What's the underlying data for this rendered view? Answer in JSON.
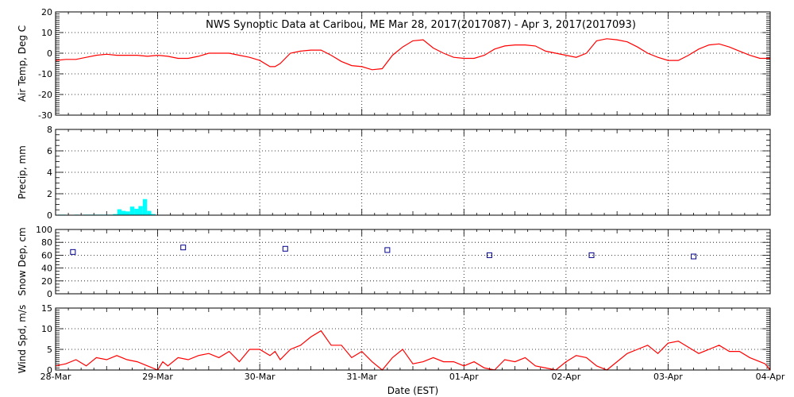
{
  "chart_data": {
    "title": "NWS Synoptic Data at Caribou, ME   Mar 28, 2017(2017087) - Apr  3, 2017(2017093)",
    "xlabel": "Date (EST)",
    "x_ticks": [
      "28-Mar",
      "29-Mar",
      "30-Mar",
      "31-Mar",
      "01-Apr",
      "02-Apr",
      "03-Apr",
      "04-Apr"
    ],
    "xlim_days": [
      0,
      7
    ],
    "grid": true,
    "panels": [
      {
        "type": "line",
        "ylabel": "Air Temp, Deg C",
        "ylim": [
          -30,
          20
        ],
        "yticks": [
          -30,
          -20,
          -10,
          0,
          10,
          20
        ],
        "color": "#ff0000",
        "x_days": [
          0,
          0.1,
          0.2,
          0.3,
          0.4,
          0.5,
          0.6,
          0.7,
          0.8,
          0.9,
          1.0,
          1.1,
          1.2,
          1.3,
          1.4,
          1.5,
          1.6,
          1.7,
          1.8,
          1.9,
          2.0,
          2.1,
          2.15,
          2.2,
          2.3,
          2.4,
          2.5,
          2.6,
          2.7,
          2.8,
          2.9,
          3.0,
          3.1,
          3.2,
          3.3,
          3.4,
          3.5,
          3.6,
          3.7,
          3.8,
          3.9,
          4.0,
          4.1,
          4.2,
          4.3,
          4.4,
          4.5,
          4.6,
          4.7,
          4.8,
          4.9,
          5.0,
          5.1,
          5.2,
          5.3,
          5.4,
          5.5,
          5.6,
          5.7,
          5.8,
          5.9,
          6.0,
          6.1,
          6.2,
          6.3,
          6.4,
          6.5,
          6.6,
          6.7,
          6.8,
          6.9,
          7.0
        ],
        "values": [
          -3.5,
          -3.0,
          -3.0,
          -2.0,
          -1.0,
          -0.5,
          -1.0,
          -1.0,
          -1.0,
          -1.5,
          -1.0,
          -1.5,
          -2.5,
          -2.5,
          -1.5,
          0,
          0,
          0,
          -1.0,
          -2.0,
          -3.5,
          -6.5,
          -6.5,
          -5.0,
          0,
          1.0,
          1.5,
          1.5,
          -1.0,
          -4.0,
          -6.0,
          -6.5,
          -8.0,
          -7.5,
          -1.0,
          3.0,
          6.0,
          6.5,
          2.5,
          0,
          -2.0,
          -2.5,
          -2.5,
          -1.0,
          2.0,
          3.5,
          4.0,
          4.0,
          3.5,
          1.0,
          0,
          -1.0,
          -2.0,
          0,
          6.0,
          7.0,
          6.5,
          5.5,
          3.0,
          0,
          -2.0,
          -3.5,
          -3.5,
          -1.0,
          2.0,
          4.0,
          4.5,
          3.0,
          1.0,
          -1.0,
          -2.5,
          -2.5
        ]
      },
      {
        "type": "bar",
        "ylabel": "Precip, mm",
        "ylim": [
          0,
          8
        ],
        "yticks": [
          0,
          2,
          4,
          6,
          8
        ],
        "color": "#00ffff",
        "bar_width_days": 0.042,
        "x_days": [
          0.042,
          0.083,
          0.208,
          0.25,
          0.292,
          0.333,
          0.375,
          0.417,
          0.458,
          0.5,
          0.542,
          0.583,
          0.625,
          0.667,
          0.708,
          0.75,
          0.792,
          0.833,
          0.875,
          0.917,
          0.958
        ],
        "values": [
          0.05,
          0.05,
          0.05,
          0,
          0.05,
          0.05,
          0.05,
          0.05,
          0.05,
          0.05,
          0.05,
          0.1,
          0.55,
          0.4,
          0.35,
          0.8,
          0.6,
          0.85,
          1.5,
          0.4,
          0.1
        ]
      },
      {
        "type": "scatter",
        "ylabel": "Snow Dep, cm",
        "ylim": [
          0,
          100
        ],
        "yticks": [
          0,
          20,
          40,
          60,
          80,
          100
        ],
        "color": "#00008b",
        "x_days": [
          0.17,
          1.25,
          2.25,
          3.25,
          4.25,
          5.25,
          6.25
        ],
        "values": [
          65,
          72,
          70,
          68,
          60,
          60,
          58
        ]
      },
      {
        "type": "line",
        "ylabel": "Wind Spd, m/s",
        "ylim": [
          0,
          15
        ],
        "yticks": [
          0,
          5,
          10,
          15
        ],
        "color": "#ff0000",
        "x_days": [
          0,
          0.1,
          0.2,
          0.3,
          0.4,
          0.5,
          0.6,
          0.7,
          0.8,
          0.9,
          1.0,
          1.05,
          1.1,
          1.2,
          1.3,
          1.4,
          1.5,
          1.6,
          1.7,
          1.8,
          1.9,
          2.0,
          2.1,
          2.15,
          2.2,
          2.3,
          2.4,
          2.5,
          2.6,
          2.7,
          2.8,
          2.9,
          3.0,
          3.1,
          3.2,
          3.3,
          3.4,
          3.5,
          3.6,
          3.7,
          3.8,
          3.9,
          4.0,
          4.1,
          4.2,
          4.3,
          4.4,
          4.5,
          4.6,
          4.7,
          4.8,
          4.9,
          5.0,
          5.1,
          5.2,
          5.3,
          5.4,
          5.5,
          5.6,
          5.7,
          5.8,
          5.9,
          6.0,
          6.1,
          6.2,
          6.3,
          6.4,
          6.5,
          6.6,
          6.7,
          6.8,
          6.9,
          6.95,
          7.0
        ],
        "values": [
          1.0,
          1.5,
          2.5,
          1.0,
          3.0,
          2.5,
          3.5,
          2.5,
          2.0,
          1.0,
          0,
          2.0,
          1.0,
          3.0,
          2.5,
          3.5,
          4.0,
          3.0,
          4.5,
          2.0,
          5.0,
          5.0,
          3.5,
          4.5,
          2.5,
          5.0,
          6.0,
          8.0,
          9.5,
          6.0,
          6.0,
          3.0,
          4.5,
          2.0,
          0,
          3.0,
          5.0,
          1.5,
          2.0,
          3.0,
          2.0,
          2.0,
          1.0,
          2.0,
          0.5,
          0,
          2.5,
          2.0,
          3.0,
          1.0,
          0.5,
          0,
          2.0,
          3.5,
          3.0,
          1.0,
          0,
          2.0,
          4.0,
          5.0,
          6.0,
          4.0,
          6.5,
          7.0,
          5.5,
          4.0,
          5.0,
          6.0,
          4.5,
          4.5,
          3.0,
          2.0,
          1.5,
          0
        ]
      }
    ]
  }
}
